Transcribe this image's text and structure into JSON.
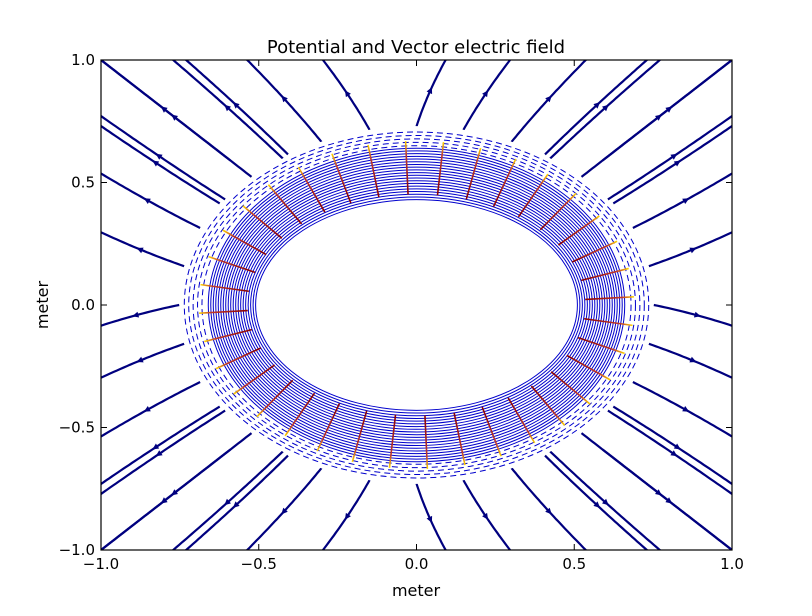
{
  "chart_data": {
    "type": "contour+streamplot",
    "title": "Potential and  Vector electric field",
    "xlabel": "meter",
    "ylabel": "meter",
    "xlim": [
      -1.0,
      1.0
    ],
    "ylim": [
      -1.0,
      1.0
    ],
    "xticks": [
      "−1.0",
      "−0.5",
      "0.0",
      "0.5",
      "1.0"
    ],
    "yticks": [
      "−1.0",
      "−0.5",
      "0.0",
      "0.5",
      "1.0"
    ],
    "xtick_values": [
      -1.0,
      -0.5,
      0.0,
      0.5,
      1.0
    ],
    "ytick_values": [
      -1.0,
      -0.5,
      0.0,
      0.5,
      1.0
    ],
    "grid": false,
    "ring": {
      "center": [
        0.0,
        0.0
      ],
      "inner_semi_axes": [
        0.51,
        0.43
      ],
      "outer_semi_axes": [
        0.66,
        0.64
      ],
      "solid_contours": 20,
      "dashed_semi_axes_start": [
        0.68,
        0.65
      ],
      "dashed_contours": 5,
      "dashed_step": 0.014
    },
    "colors": {
      "contour": "#0000cc",
      "stream": "#00007f",
      "vector_inner": "#8b0000",
      "vector_outer": "#ffd700"
    },
    "vector_count": 36,
    "stream_grid": 9
  }
}
